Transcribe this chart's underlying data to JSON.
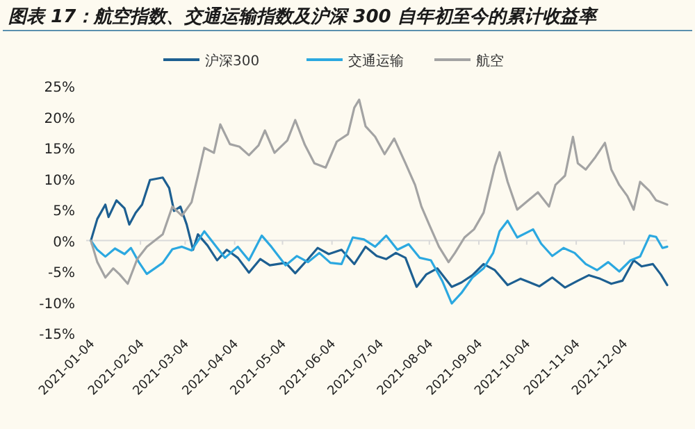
{
  "chart_data": {
    "type": "line",
    "title": "图表 17：航空指数、交通运输指数及沪深 300 自年初至今的累计收益率",
    "series": [
      {
        "name": "沪深300",
        "color": "#1d5f91",
        "x": [
          "2021-01-04",
          "2021-01-08",
          "2021-01-13",
          "2021-01-15",
          "2021-01-20",
          "2021-01-25",
          "2021-01-28",
          "2021-02-01",
          "2021-02-05",
          "2021-02-10",
          "2021-02-18",
          "2021-02-22",
          "2021-02-25",
          "2021-03-01",
          "2021-03-05",
          "2021-03-09",
          "2021-03-12",
          "2021-03-18",
          "2021-03-24",
          "2021-03-30",
          "2021-04-06",
          "2021-04-13",
          "2021-04-20",
          "2021-04-26",
          "2021-05-06",
          "2021-05-12",
          "2021-05-20",
          "2021-05-26",
          "2021-06-02",
          "2021-06-10",
          "2021-06-18",
          "2021-06-25",
          "2021-07-02",
          "2021-07-08",
          "2021-07-14",
          "2021-07-20",
          "2021-07-27",
          "2021-08-02",
          "2021-08-09",
          "2021-08-18",
          "2021-08-24",
          "2021-08-31",
          "2021-09-07",
          "2021-09-14",
          "2021-09-22",
          "2021-09-30",
          "2021-10-12",
          "2021-10-20",
          "2021-10-28",
          "2021-11-05",
          "2021-11-12",
          "2021-11-19",
          "2021-11-26",
          "2021-12-03",
          "2021-12-10",
          "2021-12-15",
          "2021-12-22",
          "2021-12-27",
          "2021-12-31"
        ],
        "values": [
          0,
          3.5,
          5.8,
          3.8,
          6.5,
          5.2,
          2.6,
          4.5,
          5.8,
          9.8,
          10.2,
          8.5,
          4.8,
          5.5,
          2.6,
          -1.5,
          1.0,
          -0.8,
          -3.2,
          -1.5,
          -2.8,
          -5.2,
          -3.0,
          -4.0,
          -3.6,
          -5.3,
          -3.0,
          -1.2,
          -2.2,
          -1.5,
          -3.8,
          -1.0,
          -2.5,
          -3.0,
          -2.0,
          -2.8,
          -7.5,
          -5.5,
          -4.5,
          -7.5,
          -6.8,
          -5.6,
          -3.8,
          -4.8,
          -7.2,
          -6.2,
          -7.4,
          -6.0,
          -7.6,
          -6.5,
          -5.6,
          -6.2,
          -7.0,
          -6.5,
          -3.2,
          -4.2,
          -3.8,
          -5.5,
          -7.2
        ]
      },
      {
        "name": "交通运输",
        "color": "#2ba8e0",
        "x": [
          "2021-01-04",
          "2021-01-08",
          "2021-01-13",
          "2021-01-19",
          "2021-01-25",
          "2021-01-29",
          "2021-02-03",
          "2021-02-08",
          "2021-02-18",
          "2021-02-24",
          "2021-03-02",
          "2021-03-08",
          "2021-03-16",
          "2021-03-22",
          "2021-03-29",
          "2021-04-06",
          "2021-04-13",
          "2021-04-21",
          "2021-04-27",
          "2021-05-06",
          "2021-05-13",
          "2021-05-20",
          "2021-05-27",
          "2021-06-03",
          "2021-06-10",
          "2021-06-17",
          "2021-06-24",
          "2021-07-01",
          "2021-07-08",
          "2021-07-15",
          "2021-07-22",
          "2021-07-29",
          "2021-08-05",
          "2021-08-12",
          "2021-08-18",
          "2021-08-24",
          "2021-08-31",
          "2021-09-07",
          "2021-09-13",
          "2021-09-17",
          "2021-09-22",
          "2021-09-28",
          "2021-10-08",
          "2021-10-13",
          "2021-10-20",
          "2021-10-27",
          "2021-11-03",
          "2021-11-10",
          "2021-11-17",
          "2021-11-24",
          "2021-12-01",
          "2021-12-08",
          "2021-12-14",
          "2021-12-20",
          "2021-12-24",
          "2021-12-28",
          "2021-12-31"
        ],
        "values": [
          0,
          -1.5,
          -2.6,
          -1.3,
          -2.2,
          -1.2,
          -3.5,
          -5.4,
          -3.6,
          -1.4,
          -1.0,
          -1.6,
          1.5,
          -0.5,
          -2.8,
          -1.0,
          -3.2,
          0.8,
          -1.0,
          -4.0,
          -2.5,
          -3.5,
          -2.0,
          -3.6,
          -3.8,
          0.5,
          0.2,
          -1.0,
          0.8,
          -1.5,
          -0.6,
          -2.8,
          -3.2,
          -6.5,
          -10.2,
          -8.5,
          -6.0,
          -4.5,
          -2.0,
          1.5,
          3.2,
          0.5,
          1.8,
          -0.5,
          -2.5,
          -1.2,
          -2.0,
          -3.8,
          -4.8,
          -3.5,
          -5.0,
          -3.2,
          -2.6,
          0.8,
          0.6,
          -1.2,
          -1.0
        ]
      },
      {
        "name": "航空",
        "color": "#a3a3a3",
        "x": [
          "2021-01-04",
          "2021-01-08",
          "2021-01-13",
          "2021-01-18",
          "2021-01-22",
          "2021-01-27",
          "2021-02-02",
          "2021-02-08",
          "2021-02-18",
          "2021-02-24",
          "2021-03-02",
          "2021-03-08",
          "2021-03-12",
          "2021-03-16",
          "2021-03-22",
          "2021-03-26",
          "2021-04-01",
          "2021-04-07",
          "2021-04-13",
          "2021-04-19",
          "2021-04-23",
          "2021-04-29",
          "2021-05-07",
          "2021-05-12",
          "2021-05-18",
          "2021-05-24",
          "2021-05-31",
          "2021-06-07",
          "2021-06-14",
          "2021-06-18",
          "2021-06-21",
          "2021-06-25",
          "2021-07-01",
          "2021-07-07",
          "2021-07-13",
          "2021-07-20",
          "2021-07-26",
          "2021-07-30",
          "2021-08-04",
          "2021-08-10",
          "2021-08-16",
          "2021-08-20",
          "2021-08-26",
          "2021-09-01",
          "2021-09-07",
          "2021-09-14",
          "2021-09-17",
          "2021-09-22",
          "2021-09-28",
          "2021-10-11",
          "2021-10-18",
          "2021-10-22",
          "2021-10-28",
          "2021-11-02",
          "2021-11-05",
          "2021-11-10",
          "2021-11-16",
          "2021-11-22",
          "2021-11-26",
          "2021-12-01",
          "2021-12-06",
          "2021-12-10",
          "2021-12-14",
          "2021-12-20",
          "2021-12-24",
          "2021-12-31"
        ],
        "values": [
          0,
          -3.5,
          -6.0,
          -4.5,
          -5.5,
          -7.0,
          -3.0,
          -1.0,
          1.0,
          5.5,
          4.0,
          6.2,
          10.5,
          15.0,
          14.2,
          18.8,
          15.6,
          15.2,
          13.8,
          15.4,
          17.8,
          14.2,
          16.2,
          19.5,
          15.5,
          12.5,
          11.8,
          16.0,
          17.2,
          21.5,
          22.8,
          18.5,
          16.8,
          14.0,
          16.5,
          12.5,
          9.0,
          5.5,
          2.5,
          -1.0,
          -3.5,
          -2.0,
          0.5,
          1.8,
          4.5,
          12.0,
          14.3,
          9.5,
          5.0,
          7.8,
          5.5,
          9.0,
          10.5,
          16.8,
          12.5,
          11.5,
          13.5,
          15.8,
          11.5,
          9.0,
          7.2,
          5.0,
          9.5,
          8.0,
          6.5,
          5.8
        ]
      }
    ],
    "xlim": [
      "2021-01-01",
      "2021-12-31"
    ],
    "xticks": [
      "2021-01-04",
      "2021-02-04",
      "2021-03-04",
      "2021-04-04",
      "2021-05-04",
      "2021-06-04",
      "2021-07-04",
      "2021-08-04",
      "2021-09-04",
      "2021-10-04",
      "2021-11-04",
      "2021-12-04"
    ],
    "ylim": [
      -15,
      25
    ],
    "yticks": [
      {
        "value": -15,
        "label": "-15%"
      },
      {
        "value": -10,
        "label": "-10%"
      },
      {
        "value": -5,
        "label": "-5%"
      },
      {
        "value": 0,
        "label": "0%"
      },
      {
        "value": 5,
        "label": "5%"
      },
      {
        "value": 10,
        "label": "10%"
      },
      {
        "value": 15,
        "label": "15%"
      },
      {
        "value": 20,
        "label": "20%"
      },
      {
        "value": 25,
        "label": "25%"
      }
    ],
    "legend": "top",
    "marker": "none",
    "line_style": "solid"
  }
}
